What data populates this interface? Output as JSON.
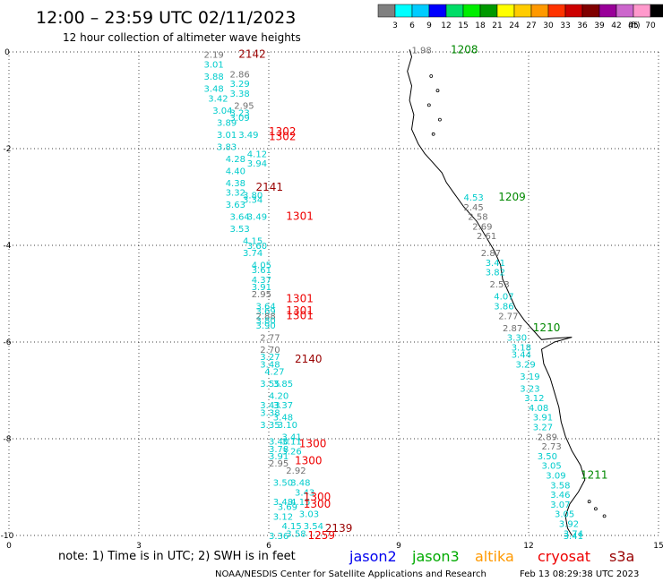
{
  "header": {
    "title": "12:00 – 23:59 UTC 02/11/2023",
    "subtitle": "12 hour collection of altimeter wave heights"
  },
  "colorbar": {
    "labels": [
      "3",
      "6",
      "9",
      "12",
      "15",
      "18",
      "21",
      "24",
      "27",
      "30",
      "33",
      "36",
      "39",
      "42",
      "45",
      "70"
    ],
    "unit": "(ft)",
    "colors": [
      "#808080",
      "#00ffff",
      "#00ccff",
      "#0000ff",
      "#00dd66",
      "#00ee00",
      "#009900",
      "#ffff00",
      "#ffcc00",
      "#ff9900",
      "#ff3300",
      "#cc0000",
      "#800000",
      "#990099",
      "#cc66cc",
      "#ff99cc",
      "#000000"
    ]
  },
  "footer": {
    "note": "note:  1) Time is in UTC;  2) SWH is in feet",
    "credit": "NOAA/NESDIS Center for Satellite Applications and Research",
    "timestamp": "Feb 13 08:29:38 UTC 2023"
  },
  "legend": [
    {
      "name": "jason2",
      "color": "#0000ee"
    },
    {
      "name": "jason3",
      "color": "#00aa00"
    },
    {
      "name": "altika",
      "color": "#ff9900"
    },
    {
      "name": "cryosat",
      "color": "#ee0000"
    },
    {
      "name": "s3a",
      "color": "#990000"
    }
  ],
  "chart_data": {
    "type": "scatter",
    "xlim": [
      0,
      15
    ],
    "ylim": [
      -10,
      0
    ],
    "xticks": [
      "0",
      "3",
      "6",
      "9",
      "12",
      "15"
    ],
    "yticks": [
      "0",
      "-2",
      "-4",
      "-6",
      "-8",
      "-10"
    ],
    "grid": true,
    "colors": {
      "cyan": "#00cccc",
      "gray": "#707070",
      "red": "#ee0000",
      "darkred": "#990000",
      "green": "#008800"
    },
    "points": [
      {
        "x": 4.5,
        "y": -0.05,
        "label": "2.19",
        "color": "gray"
      },
      {
        "x": 4.5,
        "y": -0.25,
        "label": "3.01",
        "color": "cyan"
      },
      {
        "x": 5.1,
        "y": -0.45,
        "label": "2.86",
        "color": "gray"
      },
      {
        "x": 4.5,
        "y": -0.5,
        "label": "3.88",
        "color": "cyan"
      },
      {
        "x": 5.1,
        "y": -0.65,
        "label": "3.29",
        "color": "cyan"
      },
      {
        "x": 4.5,
        "y": -0.75,
        "label": "3.48",
        "color": "cyan"
      },
      {
        "x": 5.1,
        "y": -0.85,
        "label": "3.38",
        "color": "cyan"
      },
      {
        "x": 4.6,
        "y": -0.95,
        "label": "3.42",
        "color": "cyan"
      },
      {
        "x": 5.2,
        "y": -1.1,
        "label": "2.95",
        "color": "gray"
      },
      {
        "x": 4.7,
        "y": -1.2,
        "label": "3.04",
        "color": "cyan"
      },
      {
        "x": 5.1,
        "y": -1.25,
        "label": "3.23",
        "color": "cyan"
      },
      {
        "x": 5.1,
        "y": -1.35,
        "label": "3.09",
        "color": "cyan"
      },
      {
        "x": 4.8,
        "y": -1.45,
        "label": "3.89",
        "color": "cyan"
      },
      {
        "x": 4.8,
        "y": -1.7,
        "label": "3.01",
        "color": "cyan"
      },
      {
        "x": 5.3,
        "y": -1.7,
        "label": "3.49",
        "color": "cyan"
      },
      {
        "x": 4.8,
        "y": -1.95,
        "label": "3.83",
        "color": "cyan"
      },
      {
        "x": 5.5,
        "y": -2.1,
        "label": "4.12",
        "color": "cyan"
      },
      {
        "x": 5.0,
        "y": -2.2,
        "label": "4.28",
        "color": "cyan"
      },
      {
        "x": 5.5,
        "y": -2.3,
        "label": "3.94",
        "color": "cyan"
      },
      {
        "x": 5.0,
        "y": -2.45,
        "label": "4.40",
        "color": "cyan"
      },
      {
        "x": 5.0,
        "y": -2.7,
        "label": "4.38",
        "color": "cyan"
      },
      {
        "x": 5.0,
        "y": -2.9,
        "label": "3.32",
        "color": "cyan"
      },
      {
        "x": 5.4,
        "y": -2.95,
        "label": "3.80",
        "color": "cyan"
      },
      {
        "x": 5.4,
        "y": -3.05,
        "label": "3.34",
        "color": "cyan"
      },
      {
        "x": 5.0,
        "y": -3.15,
        "label": "3.63",
        "color": "cyan"
      },
      {
        "x": 5.1,
        "y": -3.4,
        "label": "3.64",
        "color": "cyan"
      },
      {
        "x": 5.5,
        "y": -3.4,
        "label": "3.49",
        "color": "cyan"
      },
      {
        "x": 5.1,
        "y": -3.65,
        "label": "3.53",
        "color": "cyan"
      },
      {
        "x": 5.4,
        "y": -3.9,
        "label": "4.15",
        "color": "cyan"
      },
      {
        "x": 5.5,
        "y": -4.0,
        "label": "3.60",
        "color": "cyan"
      },
      {
        "x": 5.4,
        "y": -4.15,
        "label": "3.74",
        "color": "cyan"
      },
      {
        "x": 5.6,
        "y": -4.4,
        "label": "4.05",
        "color": "cyan"
      },
      {
        "x": 5.6,
        "y": -4.5,
        "label": "3.61",
        "color": "cyan"
      },
      {
        "x": 5.6,
        "y": -4.7,
        "label": "4.37",
        "color": "cyan"
      },
      {
        "x": 5.6,
        "y": -4.85,
        "label": "3.91",
        "color": "cyan"
      },
      {
        "x": 5.6,
        "y": -5.0,
        "label": "2.95",
        "color": "gray"
      },
      {
        "x": 5.7,
        "y": -5.25,
        "label": "3.64",
        "color": "cyan"
      },
      {
        "x": 5.7,
        "y": -5.35,
        "label": "3.69",
        "color": "cyan"
      },
      {
        "x": 5.7,
        "y": -5.45,
        "label": "2.88",
        "color": "gray"
      },
      {
        "x": 5.7,
        "y": -5.55,
        "label": "3.80",
        "color": "cyan"
      },
      {
        "x": 5.7,
        "y": -5.65,
        "label": "3.90",
        "color": "cyan"
      },
      {
        "x": 5.8,
        "y": -5.9,
        "label": "2.77",
        "color": "gray"
      },
      {
        "x": 5.8,
        "y": -6.15,
        "label": "2.70",
        "color": "gray"
      },
      {
        "x": 5.8,
        "y": -6.3,
        "label": "3.27",
        "color": "cyan"
      },
      {
        "x": 5.8,
        "y": -6.45,
        "label": "3.48",
        "color": "cyan"
      },
      {
        "x": 5.9,
        "y": -6.6,
        "label": "4.27",
        "color": "cyan"
      },
      {
        "x": 5.8,
        "y": -6.85,
        "label": "3.55",
        "color": "cyan"
      },
      {
        "x": 6.1,
        "y": -6.85,
        "label": "3.85",
        "color": "cyan"
      },
      {
        "x": 6.0,
        "y": -7.1,
        "label": "4.20",
        "color": "cyan"
      },
      {
        "x": 5.8,
        "y": -7.3,
        "label": "3.43",
        "color": "cyan"
      },
      {
        "x": 6.1,
        "y": -7.3,
        "label": "3.37",
        "color": "cyan"
      },
      {
        "x": 5.8,
        "y": -7.45,
        "label": "3.38",
        "color": "cyan"
      },
      {
        "x": 6.1,
        "y": -7.55,
        "label": "3.48",
        "color": "cyan"
      },
      {
        "x": 5.8,
        "y": -7.7,
        "label": "3.35",
        "color": "cyan"
      },
      {
        "x": 6.2,
        "y": -7.7,
        "label": "3.10",
        "color": "cyan"
      },
      {
        "x": 6.3,
        "y": -7.95,
        "label": "3.41",
        "color": "cyan"
      },
      {
        "x": 6.0,
        "y": -8.05,
        "label": "3.40",
        "color": "cyan"
      },
      {
        "x": 6.3,
        "y": -8.05,
        "label": "3.11",
        "color": "cyan"
      },
      {
        "x": 6.0,
        "y": -8.2,
        "label": "3.78",
        "color": "cyan"
      },
      {
        "x": 6.3,
        "y": -8.25,
        "label": "3.26",
        "color": "cyan"
      },
      {
        "x": 6.0,
        "y": -8.35,
        "label": "3.91",
        "color": "cyan"
      },
      {
        "x": 6.0,
        "y": -8.5,
        "label": "2.95",
        "color": "gray"
      },
      {
        "x": 6.4,
        "y": -8.65,
        "label": "2.92",
        "color": "gray"
      },
      {
        "x": 6.1,
        "y": -8.9,
        "label": "3.50",
        "color": "cyan"
      },
      {
        "x": 6.5,
        "y": -8.9,
        "label": "3.48",
        "color": "cyan"
      },
      {
        "x": 6.6,
        "y": -9.1,
        "label": "3.43",
        "color": "cyan"
      },
      {
        "x": 6.1,
        "y": -9.3,
        "label": "3.48",
        "color": "cyan"
      },
      {
        "x": 6.5,
        "y": -9.3,
        "label": "4.15",
        "color": "cyan"
      },
      {
        "x": 6.2,
        "y": -9.4,
        "label": "3.69",
        "color": "cyan"
      },
      {
        "x": 6.7,
        "y": -9.55,
        "label": "3.03",
        "color": "cyan"
      },
      {
        "x": 6.1,
        "y": -9.6,
        "label": "3.12",
        "color": "cyan"
      },
      {
        "x": 6.3,
        "y": -9.8,
        "label": "4.15",
        "color": "cyan"
      },
      {
        "x": 6.8,
        "y": -9.8,
        "label": "3.54",
        "color": "cyan"
      },
      {
        "x": 6.4,
        "y": -9.95,
        "label": "3.58",
        "color": "cyan"
      },
      {
        "x": 6.0,
        "y": -10.0,
        "label": "3.36",
        "color": "cyan"
      },
      {
        "x": 5.3,
        "y": -0.05,
        "label": "2142",
        "color": "darkred"
      },
      {
        "x": 6.0,
        "y": -1.65,
        "label": "1302",
        "color": "red"
      },
      {
        "x": 6.0,
        "y": -1.75,
        "label": "1302",
        "color": "red"
      },
      {
        "x": 5.7,
        "y": -2.8,
        "label": "2141",
        "color": "darkred"
      },
      {
        "x": 6.4,
        "y": -3.4,
        "label": "1301",
        "color": "red"
      },
      {
        "x": 6.4,
        "y": -5.1,
        "label": "1301",
        "color": "red"
      },
      {
        "x": 6.4,
        "y": -5.35,
        "label": "1301",
        "color": "red"
      },
      {
        "x": 6.4,
        "y": -5.45,
        "label": "1301",
        "color": "red"
      },
      {
        "x": 6.6,
        "y": -6.35,
        "label": "2140",
        "color": "darkred"
      },
      {
        "x": 6.7,
        "y": -8.1,
        "label": "1300",
        "color": "red"
      },
      {
        "x": 6.6,
        "y": -8.45,
        "label": "1300",
        "color": "red"
      },
      {
        "x": 6.8,
        "y": -9.2,
        "label": "1300",
        "color": "red"
      },
      {
        "x": 6.8,
        "y": -9.35,
        "label": "1300",
        "color": "red"
      },
      {
        "x": 7.3,
        "y": -9.85,
        "label": "2139",
        "color": "darkred"
      },
      {
        "x": 6.9,
        "y": -10.0,
        "label": "1259",
        "color": "red"
      },
      {
        "x": 9.3,
        "y": 0.05,
        "label": "1.98",
        "color": "gray"
      },
      {
        "x": 10.2,
        "y": 0.05,
        "label": "1208",
        "color": "green"
      },
      {
        "x": 10.5,
        "y": -3.0,
        "label": "4.53",
        "color": "cyan"
      },
      {
        "x": 11.3,
        "y": -3.0,
        "label": "1209",
        "color": "green"
      },
      {
        "x": 10.5,
        "y": -3.2,
        "label": "2.45",
        "color": "gray"
      },
      {
        "x": 10.6,
        "y": -3.4,
        "label": "2.58",
        "color": "gray"
      },
      {
        "x": 10.7,
        "y": -3.6,
        "label": "2.69",
        "color": "gray"
      },
      {
        "x": 10.8,
        "y": -3.8,
        "label": "2.61",
        "color": "gray"
      },
      {
        "x": 10.9,
        "y": -4.15,
        "label": "2.87",
        "color": "gray"
      },
      {
        "x": 11.0,
        "y": -4.35,
        "label": "3.41",
        "color": "cyan"
      },
      {
        "x": 11.0,
        "y": -4.55,
        "label": "3.82",
        "color": "cyan"
      },
      {
        "x": 11.1,
        "y": -4.8,
        "label": "2.53",
        "color": "gray"
      },
      {
        "x": 11.2,
        "y": -5.05,
        "label": "4.07",
        "color": "cyan"
      },
      {
        "x": 11.2,
        "y": -5.25,
        "label": "3.86",
        "color": "cyan"
      },
      {
        "x": 11.3,
        "y": -5.45,
        "label": "2.77",
        "color": "gray"
      },
      {
        "x": 11.4,
        "y": -5.7,
        "label": "2.87",
        "color": "gray"
      },
      {
        "x": 12.1,
        "y": -5.7,
        "label": "1210",
        "color": "green"
      },
      {
        "x": 11.5,
        "y": -5.9,
        "label": "3.30",
        "color": "cyan"
      },
      {
        "x": 11.6,
        "y": -6.1,
        "label": "3.18",
        "color": "cyan"
      },
      {
        "x": 11.6,
        "y": -6.25,
        "label": "3.44",
        "color": "cyan"
      },
      {
        "x": 11.7,
        "y": -6.45,
        "label": "3.29",
        "color": "cyan"
      },
      {
        "x": 11.8,
        "y": -6.7,
        "label": "3.19",
        "color": "cyan"
      },
      {
        "x": 11.8,
        "y": -6.95,
        "label": "3.23",
        "color": "cyan"
      },
      {
        "x": 11.9,
        "y": -7.15,
        "label": "3.12",
        "color": "cyan"
      },
      {
        "x": 12.0,
        "y": -7.35,
        "label": "4.08",
        "color": "cyan"
      },
      {
        "x": 12.1,
        "y": -7.55,
        "label": "3.91",
        "color": "cyan"
      },
      {
        "x": 12.1,
        "y": -7.75,
        "label": "3.27",
        "color": "cyan"
      },
      {
        "x": 12.2,
        "y": -7.95,
        "label": "2.89",
        "color": "gray"
      },
      {
        "x": 12.3,
        "y": -8.15,
        "label": "2.73",
        "color": "gray"
      },
      {
        "x": 12.2,
        "y": -8.35,
        "label": "3.50",
        "color": "cyan"
      },
      {
        "x": 12.3,
        "y": -8.55,
        "label": "3.05",
        "color": "cyan"
      },
      {
        "x": 12.4,
        "y": -8.75,
        "label": "3.09",
        "color": "cyan"
      },
      {
        "x": 13.2,
        "y": -8.75,
        "label": "1211",
        "color": "green"
      },
      {
        "x": 12.5,
        "y": -8.95,
        "label": "3.58",
        "color": "cyan"
      },
      {
        "x": 12.5,
        "y": -9.15,
        "label": "3.46",
        "color": "cyan"
      },
      {
        "x": 12.5,
        "y": -9.35,
        "label": "3.07",
        "color": "cyan"
      },
      {
        "x": 12.6,
        "y": -9.55,
        "label": "3.05",
        "color": "cyan"
      },
      {
        "x": 12.7,
        "y": -9.75,
        "label": "3.92",
        "color": "cyan"
      },
      {
        "x": 12.8,
        "y": -9.95,
        "label": "3.74",
        "color": "cyan"
      },
      {
        "x": 12.8,
        "y": -10.0,
        "label": "3.41",
        "color": "cyan"
      }
    ]
  }
}
